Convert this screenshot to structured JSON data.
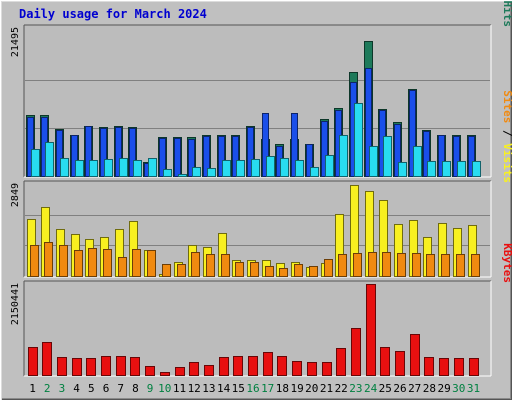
{
  "window": {
    "title": "Daily usage for March 2024"
  },
  "colors": {
    "background": "#c0c0c0",
    "panel": "#bcbcbc",
    "hits": "#1d7a5a",
    "files": "#1a4fea",
    "pages": "#28dcf0",
    "visits": "#f8f020",
    "sites": "#f08a10",
    "kbytes": "#e81010",
    "weekend_label": "#008040",
    "weekday_label": "#000000"
  },
  "chart_data": [
    {
      "type": "bar",
      "panel": "top",
      "ymax_label": "21495",
      "ylim": [
        0,
        21495
      ],
      "right_labels": [
        {
          "text": "Pages",
          "color": "#00b8c8"
        },
        {
          "text": " / ",
          "color": "#000000"
        },
        {
          "text": "Files",
          "color": "#1a4fea"
        },
        {
          "text": " / ",
          "color": "#000000"
        },
        {
          "text": "Hits",
          "color": "#1d7a5a"
        }
      ],
      "series": [
        {
          "name": "Hits",
          "values": [
            8900,
            8900,
            6900,
            6100,
            7400,
            7200,
            7300,
            7200,
            2100,
            5700,
            5700,
            5700,
            6000,
            6000,
            6100,
            7400,
            5500,
            4700,
            5500,
            4800,
            8300,
            9900,
            15100,
            19600,
            9800,
            7900,
            12700,
            6800,
            6100,
            6000,
            6000
          ]
        },
        {
          "name": "Files",
          "values": [
            8700,
            8700,
            6800,
            6000,
            7300,
            7100,
            7200,
            7000,
            2000,
            5600,
            5600,
            5500,
            5900,
            5900,
            5900,
            7200,
            9200,
            4500,
            9200,
            4700,
            8100,
            9700,
            13700,
            15700,
            9600,
            7700,
            12500,
            6700,
            6000,
            5900,
            5900
          ]
        },
        {
          "name": "Pages",
          "values": [
            4100,
            5100,
            2800,
            2500,
            2400,
            2600,
            2700,
            2500,
            2800,
            1100,
            500,
            1400,
            1300,
            2400,
            2400,
            2600,
            3100,
            2800,
            2500,
            1500,
            3200,
            6100,
            10700,
            4500,
            5900,
            2100,
            4400,
            2300,
            2300,
            2300,
            2300
          ]
        }
      ]
    },
    {
      "type": "bar",
      "panel": "middle",
      "ymax_label": "2849",
      "ylim": [
        0,
        2849
      ],
      "right_labels": [
        {
          "text": "Sites",
          "color": "#f08a10"
        },
        {
          "text": " / ",
          "color": "#000000"
        },
        {
          "text": "Visits",
          "color": "#f8f020"
        }
      ],
      "series": [
        {
          "name": "Visits",
          "values": [
            1780,
            2140,
            1480,
            1320,
            1150,
            1230,
            1480,
            1730,
            830,
            100,
            460,
            980,
            920,
            1350,
            510,
            510,
            530,
            420,
            460,
            320,
            420,
            1940,
            2830,
            2640,
            2350,
            1630,
            1760,
            1230,
            1660,
            1500,
            1600
          ]
        },
        {
          "name": "Sites",
          "values": [
            980,
            1080,
            980,
            830,
            900,
            850,
            620,
            860,
            830,
            400,
            390,
            780,
            690,
            690,
            470,
            460,
            350,
            270,
            390,
            350,
            550,
            710,
            720,
            770,
            770,
            730,
            750,
            700,
            700,
            700,
            700
          ]
        }
      ]
    },
    {
      "type": "bar",
      "panel": "bottom",
      "ymax_label": "2150441",
      "ylim": [
        0,
        2150441
      ],
      "right_labels": [
        {
          "text": "KBytes",
          "color": "#e81010"
        }
      ],
      "series": [
        {
          "name": "KBytes",
          "values": [
            670000,
            800000,
            440000,
            430000,
            430000,
            470000,
            460000,
            450000,
            230000,
            90000,
            210000,
            330000,
            260000,
            440000,
            470000,
            470000,
            550000,
            460000,
            340000,
            330000,
            330000,
            660000,
            1130000,
            2150000,
            680000,
            590000,
            980000,
            440000,
            430000,
            420000,
            420000
          ]
        }
      ]
    }
  ],
  "x_axis": {
    "labels": [
      "1",
      "2",
      "3",
      "4",
      "5",
      "6",
      "7",
      "8",
      "9",
      "10",
      "11",
      "12",
      "13",
      "14",
      "15",
      "16",
      "17",
      "18",
      "19",
      "20",
      "21",
      "22",
      "23",
      "24",
      "25",
      "26",
      "27",
      "28",
      "29",
      "30",
      "31"
    ],
    "weekend_days": [
      2,
      3,
      9,
      10,
      16,
      17,
      23,
      24,
      30,
      31
    ]
  }
}
